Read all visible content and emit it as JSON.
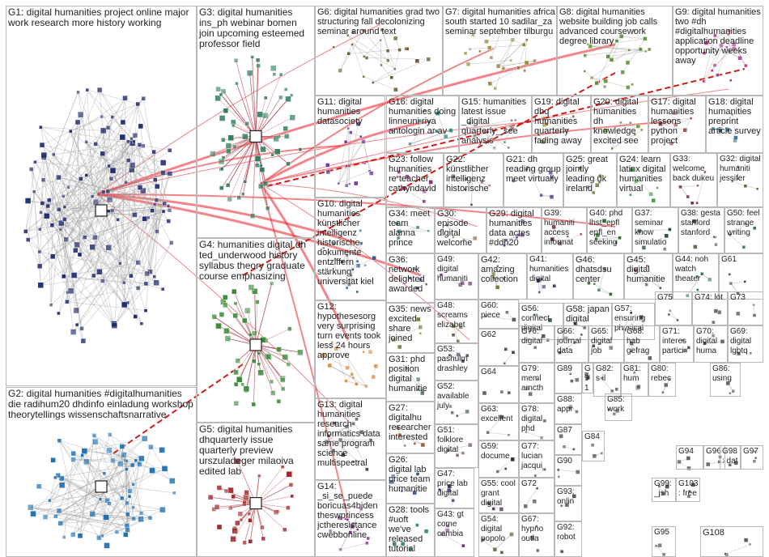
{
  "groups": [
    {
      "id": "G1",
      "text": "G1: digital humanities project online major work research more history working",
      "color": "#1f2a6b"
    },
    {
      "id": "G2",
      "text": "G2: digital humanities #digitalhumanities die radihum20 dhdinfo einladung workshop theorytellings wissenschaftsnarrative",
      "color": "#1d6fb0"
    },
    {
      "id": "G3",
      "text": "G3: digital humanities ins_ph webinar bomen join upcoming esteemed professor field",
      "color": "#2e7d5b"
    },
    {
      "id": "G4",
      "text": "G4: humanities digital dh ted_underwood history syllabus theory graduate course emphasizing",
      "color": "#3a8a3a"
    },
    {
      "id": "G5",
      "text": "G5: digital humanities dhquarterly issue quarterly preview urszuladeger milaoiva edited lab",
      "color": "#a0282a"
    },
    {
      "id": "G6",
      "text": "G6: digital humanities grad two structuring fall decolonizing seminar around text",
      "color": "#6b5a2e"
    },
    {
      "id": "G7",
      "text": "G7: digital humanities africa south started 10 sadilar_za seminar september tilburgu",
      "color": "#8a7d2a"
    },
    {
      "id": "G8",
      "text": "G8: digital humanities website building job calls advanced coursework degree library",
      "color": "#5b8a2e"
    },
    {
      "id": "G9",
      "text": "G9: digital humanities two #dh #digitalhumanities application deadline opportunity weeks away",
      "color": "#b0308a"
    },
    {
      "id": "G10",
      "text": "G10: digital humanities künstlicher intelligenz historische dokumente entziffern stärkung universität kiel",
      "color": "#2e5b8a"
    },
    {
      "id": "G11",
      "text": "G11: digital humanities datasociety",
      "color": "#6a3d9a"
    },
    {
      "id": "G12",
      "text": "G12: hypothesesorg very surprising turn events took less 24 hours approve",
      "color": "#d9822b"
    },
    {
      "id": "G13",
      "text": "G13: digital humanities research informatics data same program science multispectral",
      "color": "#444444"
    },
    {
      "id": "G14",
      "text": "G14: _si_se_puede boricuas4biden theswprincess jctheresistance cwebbonline",
      "color": "#7a2e8a"
    },
    {
      "id": "G15",
      "text": "G15: humanities latest issue _digital quarterly_ see analysis",
      "color": "#888888"
    },
    {
      "id": "G16",
      "text": "G16: digital humanities doing linneuni riya antologin ar av",
      "color": "#2e8a7a"
    },
    {
      "id": "G17",
      "text": "G17: digital humanities lessons python project",
      "color": "#8a2e2e"
    },
    {
      "id": "G18",
      "text": "G18: digital humanities preprint article survey",
      "color": "#2e6b8a"
    },
    {
      "id": "G19",
      "text": "G19: digital dhq humanities quarterly fading away",
      "color": "#8a6b2e"
    },
    {
      "id": "G20",
      "text": "G20: digital humanities dh knowledge excited see",
      "color": "#5a8a2e"
    },
    {
      "id": "G21",
      "text": "G21: dh reading group meet virtually",
      "color": "#2e2e8a"
    },
    {
      "id": "G22",
      "text": "G22: künstlicher intelligenz historische",
      "color": "#6b2e5a"
    },
    {
      "id": "G23",
      "text": "G23: follow humanities re teacher cathyndavid",
      "color": "#8a2e6b"
    },
    {
      "id": "G24",
      "text": "G24: learn latinx digital humanities virtual",
      "color": "#2e8a2e"
    },
    {
      "id": "G25",
      "text": "G25: great jointly leading uk ireland",
      "color": "#6b6b2e"
    },
    {
      "id": "G26",
      "text": "G26: digital lab price team humanitie",
      "color": "#2e4a8a"
    },
    {
      "id": "G27",
      "text": "G27: digitalhu researcher interested",
      "color": "#8a4a2e"
    },
    {
      "id": "G28",
      "text": "G28: tools #uoft we've released tutorial",
      "color": "#2e8a5a"
    },
    {
      "id": "G29",
      "text": "G29: digital humanities data actes #ddh20",
      "color": "#5a2e8a"
    },
    {
      "id": "G30",
      "text": "G30: episode digital welcome",
      "color": "#8a5a2e"
    },
    {
      "id": "G31",
      "text": "G31: phd position digital humanitie",
      "color": "#2e5a5a"
    },
    {
      "id": "G32",
      "text": "G32: digital humaniti jessifer",
      "color": "#5a5a2e"
    },
    {
      "id": "G33",
      "text": "G33: welcome back dukeu",
      "color": "#7a2e4a"
    },
    {
      "id": "G34",
      "text": "G34: meet team alanna prince",
      "color": "#2e7a7a"
    },
    {
      "id": "G35",
      "text": "G35: news excited share joined",
      "color": "#7a7a2e"
    },
    {
      "id": "G36",
      "text": "G36: network delighted awarded",
      "color": "#4a2e7a"
    },
    {
      "id": "G37",
      "text": "G37: seminar know simulatio",
      "color": "#2e4a4a"
    },
    {
      "id": "G38",
      "text": "G38: gesta stanford stanford",
      "color": "#4a4a2e"
    },
    {
      "id": "G39",
      "text": "G39: humaniti access informat",
      "color": "#6a2e2e"
    },
    {
      "id": "G40",
      "text": "G40: phd lhst_epfl epfl_en seeking",
      "color": "#2e6a2e"
    },
    {
      "id": "G41",
      "text": "G41: humanities digital",
      "color": "#2e2e6a"
    },
    {
      "id": "G42",
      "text": "G42: amazing collection",
      "color": "#6a6a2e"
    },
    {
      "id": "G43",
      "text": "G43: gt come cambia",
      "color": "#6a2e6a"
    },
    {
      "id": "G44",
      "text": "G44: noh watch theater",
      "color": "#2e6a6a"
    },
    {
      "id": "G45",
      "text": "G45: digital humanitie",
      "color": "#5e2e2e"
    },
    {
      "id": "G46",
      "text": "G46: dhatsdsu center",
      "color": "#2e5e2e"
    },
    {
      "id": "G47",
      "text": "G47: price lab digital",
      "color": "#2e2e5e"
    },
    {
      "id": "G48",
      "text": "G48: screams elizabet",
      "color": "#5e5e2e"
    },
    {
      "id": "G49",
      "text": "G49: digital humaniti",
      "color": "#5e2e5e"
    },
    {
      "id": "G50",
      "text": "G50: feel strange writing",
      "color": "#2e5e5e"
    },
    {
      "id": "G51",
      "text": "G51: folklore digital",
      "color": "#4e2e2e"
    },
    {
      "id": "G52",
      "text": "G52: available july",
      "color": "#2e4e2e"
    },
    {
      "id": "G53",
      "text": "G53: pashulm drashley",
      "color": "#2e2e4e"
    },
    {
      "id": "G54",
      "text": "G54: digital popolo",
      "color": "#4e4e2e"
    },
    {
      "id": "G55",
      "text": "G55: cool grant digital",
      "color": "#4e2e4e"
    },
    {
      "id": "G56",
      "text": "G56: connect digital",
      "color": "#2e4e4e"
    },
    {
      "id": "G57",
      "text": "G57: ensuring physical",
      "color": "#3e2e2e"
    },
    {
      "id": "G58",
      "text": "G58: japan digital",
      "color": "#2e3e2e"
    },
    {
      "id": "G59",
      "text": "G59: docume",
      "color": "#2e2e3e"
    },
    {
      "id": "G60",
      "text": "G60: piece",
      "color": "#3e3e2e"
    },
    {
      "id": "G61",
      "text": "G61",
      "color": "#3e2e3e"
    },
    {
      "id": "G62",
      "text": "G62",
      "color": "#2e3e3e"
    },
    {
      "id": "G63",
      "text": "G63: excellent",
      "color": "#555555"
    },
    {
      "id": "G64",
      "text": "G64",
      "color": "#555555"
    },
    {
      "id": "G65",
      "text": "G65: digital job",
      "color": "#555555"
    },
    {
      "id": "G66",
      "text": "G66: journal data",
      "color": "#555555"
    },
    {
      "id": "G67",
      "text": "G67: hypno outla",
      "color": "#555555"
    },
    {
      "id": "G68",
      "text": "G68: hab gefrag",
      "color": "#555555"
    },
    {
      "id": "G69",
      "text": "G69: digital lgbtq",
      "color": "#555555"
    },
    {
      "id": "G70",
      "text": "G70: digital huma",
      "color": "#555555"
    },
    {
      "id": "G71",
      "text": "G71: interes partici",
      "color": "#555555"
    },
    {
      "id": "G72",
      "text": "G72",
      "color": "#555555"
    },
    {
      "id": "G73",
      "text": "G73",
      "color": "#555555"
    },
    {
      "id": "G74",
      "text": "G74: lot",
      "color": "#555555"
    },
    {
      "id": "G75",
      "text": "G75",
      "color": "#555555"
    },
    {
      "id": "G76",
      "text": "G76: digital",
      "color": "#555555"
    },
    {
      "id": "G77",
      "text": "G77: lucian jacqui",
      "color": "#555555"
    },
    {
      "id": "G78",
      "text": "G78: digital phd",
      "color": "#555555"
    },
    {
      "id": "G79",
      "text": "G79: meml amcth",
      "color": "#555555"
    },
    {
      "id": "G80",
      "text": "G80: rebec",
      "color": "#555555"
    },
    {
      "id": "G81",
      "text": "G81: hum",
      "color": "#555555"
    },
    {
      "id": "G82",
      "text": "G82: s il",
      "color": "#555555"
    },
    {
      "id": "G84",
      "text": "G84",
      "color": "#555555"
    },
    {
      "id": "G85",
      "text": "G85: work",
      "color": "#555555"
    },
    {
      "id": "G86",
      "text": "G86: using",
      "color": "#555555"
    },
    {
      "id": "G87",
      "text": "G87",
      "color": "#555555"
    },
    {
      "id": "G88",
      "text": "G88: appr",
      "color": "#555555"
    },
    {
      "id": "G89",
      "text": "G89",
      "color": "#555555"
    },
    {
      "id": "G90",
      "text": "G90",
      "color": "#555555"
    },
    {
      "id": "G91",
      "text": "G91",
      "color": "#555555"
    },
    {
      "id": "G92",
      "text": "G92: robot",
      "color": "#555555"
    },
    {
      "id": "G93",
      "text": "G93: onlin",
      "color": "#555555"
    },
    {
      "id": "G94",
      "text": "G94",
      "color": "#555555"
    },
    {
      "id": "G95",
      "text": "G95",
      "color": "#555555"
    },
    {
      "id": "G96",
      "text": "G96",
      "color": "#555555"
    },
    {
      "id": "G97",
      "text": "G97",
      "color": "#555555"
    },
    {
      "id": "G98",
      "text": "G98: dat",
      "color": "#555555"
    },
    {
      "id": "G99",
      "text": "G99: _jsh",
      "color": "#555555"
    },
    {
      "id": "G103",
      "text": "G103: free",
      "color": "#555555"
    },
    {
      "id": "G108",
      "text": "G108",
      "color": "#555555"
    }
  ]
}
